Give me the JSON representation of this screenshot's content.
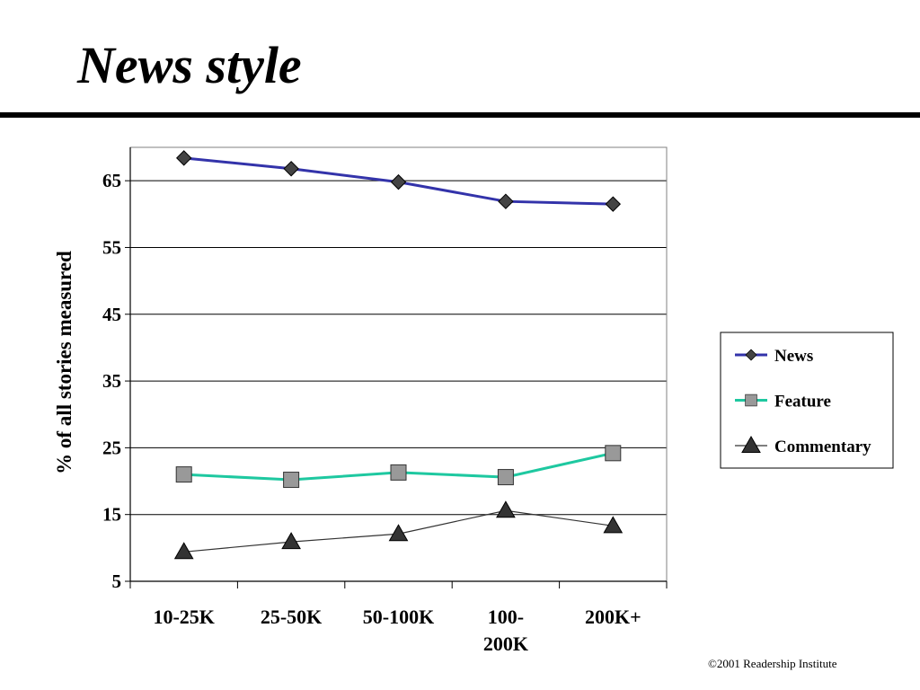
{
  "slide": {
    "title": "News style",
    "footer": "©2001 Readership Institute"
  },
  "chart_data": {
    "type": "line",
    "categories": [
      [
        "10-25K"
      ],
      [
        "25-50K"
      ],
      [
        "50-100K"
      ],
      [
        "100-",
        "200K"
      ],
      [
        "200K+"
      ]
    ],
    "series": [
      {
        "name": "News",
        "values": [
          68.4,
          66.8,
          64.8,
          61.9,
          61.5
        ],
        "color": "#3333aa",
        "marker": "diamond"
      },
      {
        "name": "Feature",
        "values": [
          21.0,
          20.2,
          21.3,
          20.6,
          24.2
        ],
        "color": "#1ec8a0",
        "marker": "square"
      },
      {
        "name": "Commentary",
        "values": [
          9.4,
          10.9,
          12.1,
          15.6,
          13.3
        ],
        "color": "#333333",
        "marker": "triangle"
      }
    ],
    "ylabel": "% of all stories measured",
    "yticks": [
      5,
      15,
      25,
      35,
      45,
      55,
      65
    ],
    "ylim": [
      5,
      70
    ],
    "grid": true,
    "legend": "right"
  }
}
